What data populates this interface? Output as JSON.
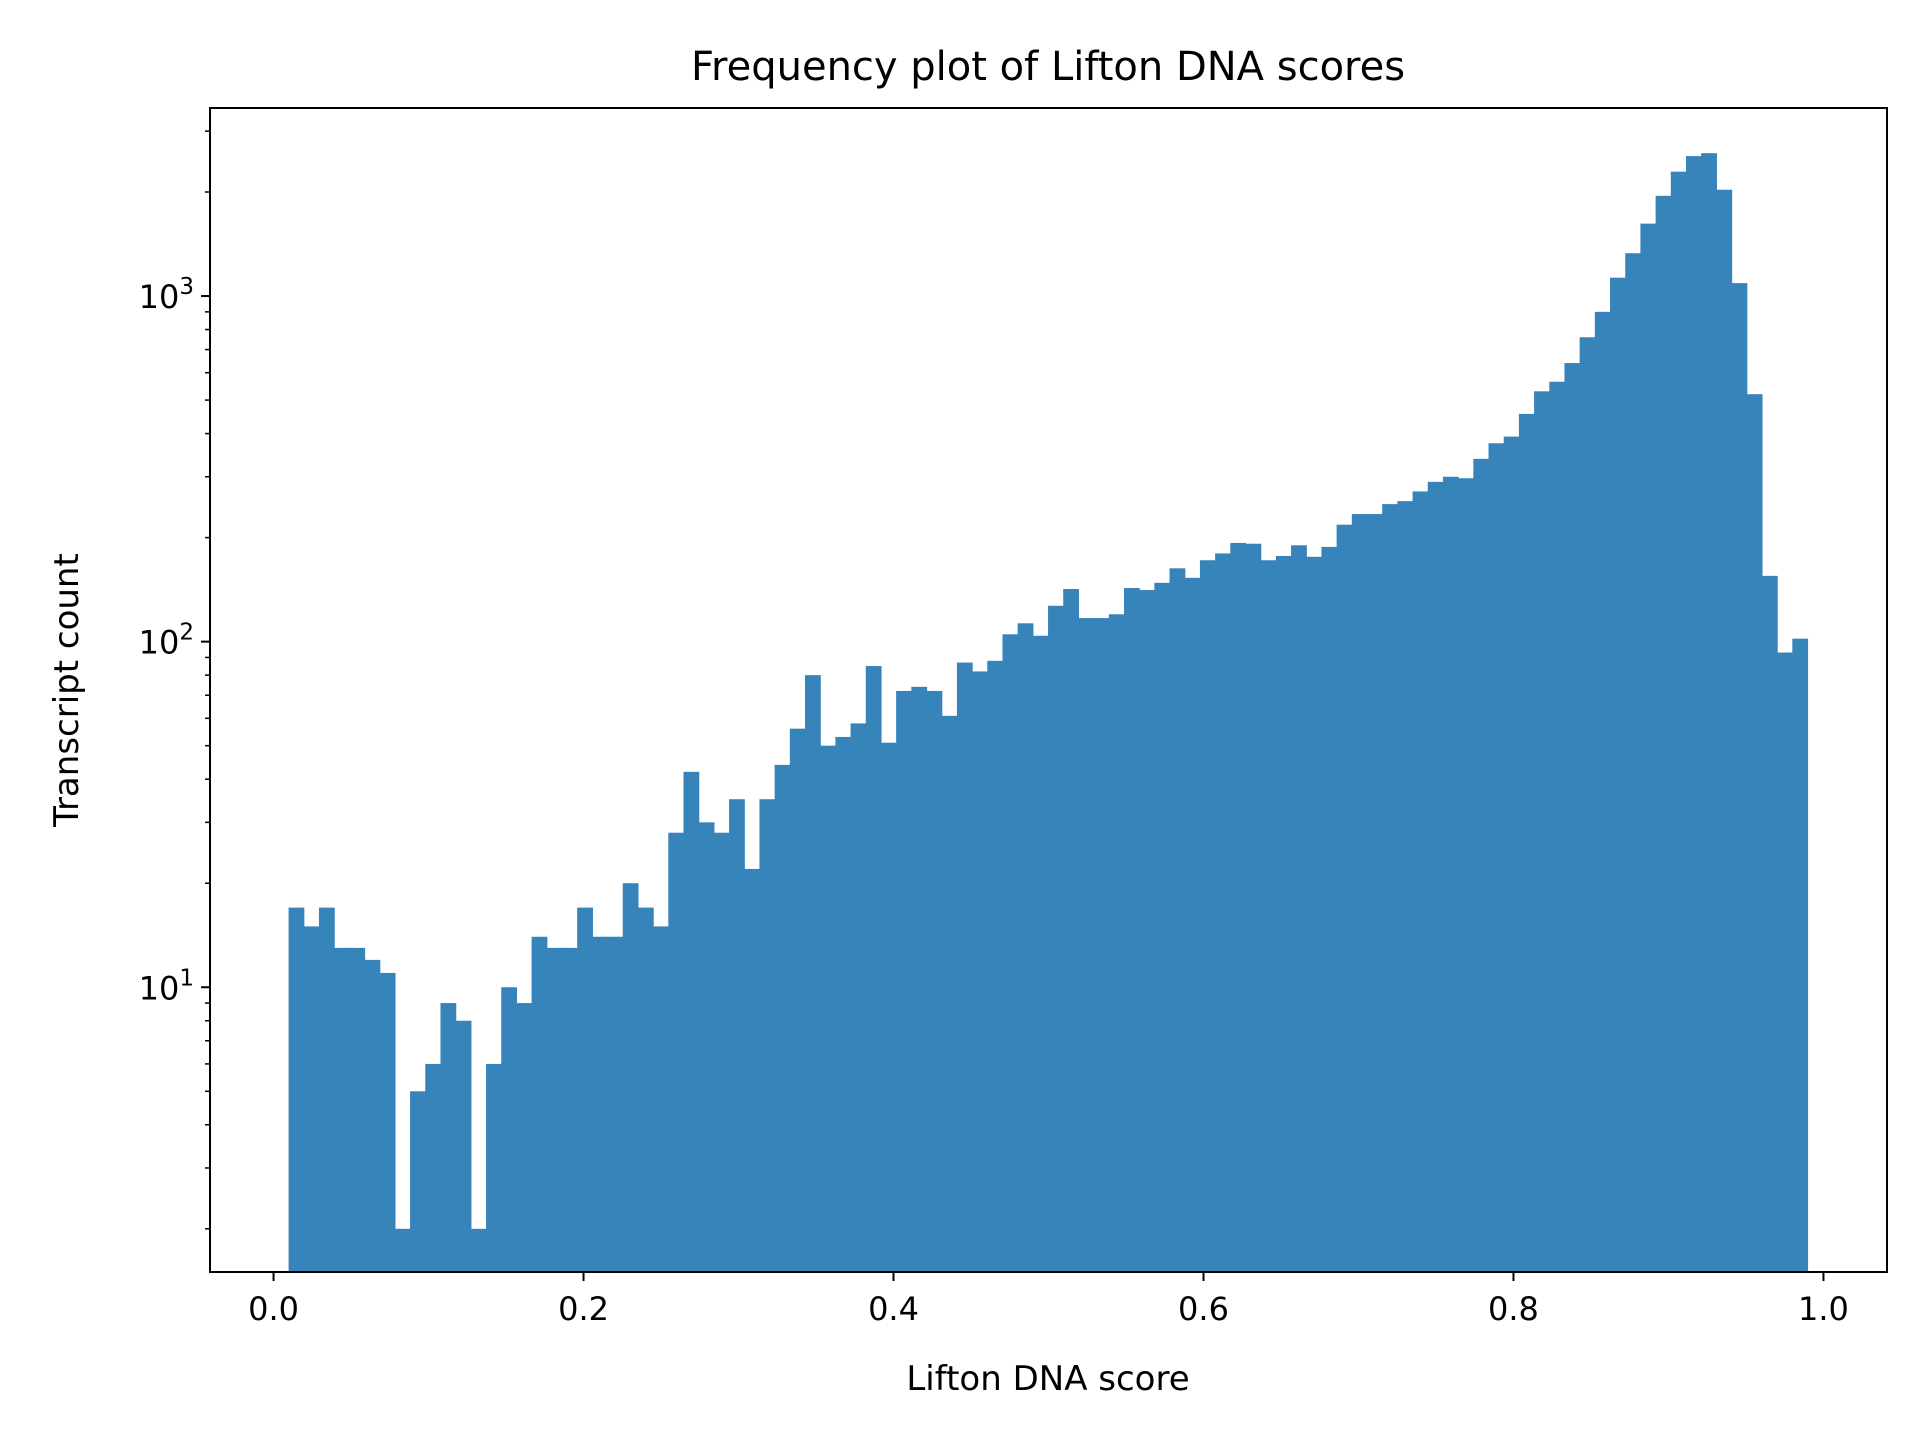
{
  "chart_data": {
    "type": "bar",
    "title": "Frequency plot of Lifton DNA scores",
    "xlabel": "Lifton DNA score",
    "ylabel": "Transcript count",
    "xlim": [
      -0.041,
      1.041
    ],
    "ylim": [
      1.5,
      3500
    ],
    "yscale": "log",
    "grid": false,
    "bar_color": "#3784bb",
    "bin_start": 0.0097,
    "bin_width": 0.0098,
    "x_ticks": [
      0.0,
      0.2,
      0.4,
      0.6,
      0.8,
      1.0
    ],
    "x_tick_labels": [
      "0.0",
      "0.2",
      "0.4",
      "0.6",
      "0.8",
      "1.0"
    ],
    "y_major_ticks": [
      {
        "value": 10,
        "base": "10",
        "exp": "1"
      },
      {
        "value": 100,
        "base": "10",
        "exp": "2"
      },
      {
        "value": 1000,
        "base": "10",
        "exp": "3"
      }
    ],
    "values": [
      17,
      15,
      17,
      13,
      13,
      12,
      11,
      2,
      5,
      6,
      9,
      8,
      2,
      6,
      10,
      9,
      14,
      13,
      13,
      17,
      14,
      14,
      20,
      17,
      15,
      28,
      42,
      30,
      28,
      35,
      22,
      35,
      44,
      56,
      80,
      50,
      53,
      58,
      85,
      51,
      72,
      74,
      72,
      61,
      87,
      82,
      88,
      105,
      113,
      104,
      127,
      142,
      117,
      117,
      120,
      143,
      141,
      148,
      163,
      153,
      172,
      180,
      193,
      192,
      172,
      177,
      190,
      176,
      188,
      218,
      234,
      234,
      250,
      255,
      272,
      290,
      300,
      297,
      338,
      375,
      392,
      456,
      530,
      565,
      640,
      760,
      900,
      1130,
      1330,
      1620,
      1950,
      2290,
      2540,
      2590,
      2030,
      1090,
      520,
      155,
      93,
      102
    ]
  }
}
